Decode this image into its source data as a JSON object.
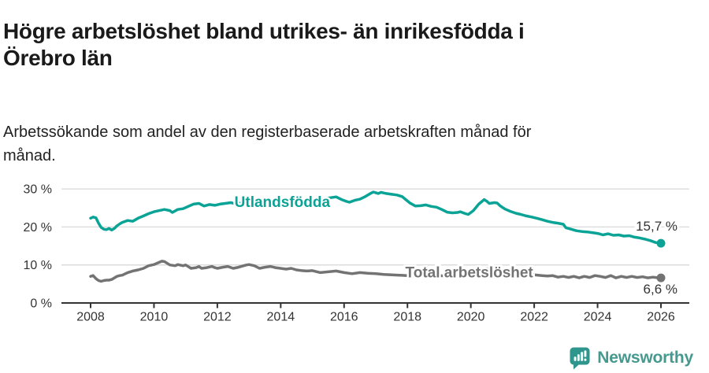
{
  "header": {
    "title_lines": [
      "Högre arbetslöshet bland utrikes- än inrikesfödda i",
      "Örebro län"
    ],
    "subtitle_lines": [
      "Arbetssökande som andel av den registerbaserade arbetskraften månad för",
      "månad."
    ]
  },
  "chart_data": {
    "type": "line",
    "title": "Högre arbetslöshet bland utrikes- än inrikesfödda i Örebro län",
    "subtitle": "Arbetssökande som andel av den registerbaserade arbetskraften månad för månad.",
    "grid": true,
    "legend_position": "inline-labels-on-lines",
    "x_axis": {
      "ticks": [
        2008,
        2010,
        2012,
        2014,
        2016,
        2018,
        2020,
        2022,
        2024,
        2026
      ],
      "range": [
        2007.1,
        2026.9
      ]
    },
    "y_axis": {
      "ticks": [
        0,
        10,
        20,
        30
      ],
      "tick_labels": [
        "0 %",
        "10 %",
        "20 %",
        "30 %"
      ],
      "range": [
        0,
        32.5
      ]
    },
    "colors": {
      "grid": "#d9d9d9",
      "axis": "#333333",
      "text": "#333333"
    },
    "series": [
      {
        "name": "Utlandsfödda",
        "color": "#0aa396",
        "end_value_label": "15,7 %",
        "end_label_side": "above",
        "inline_label_pos": {
          "x": 2014.05,
          "y": 26.6
        },
        "points": [
          [
            2008.0,
            22.3
          ],
          [
            2008.08,
            22.6
          ],
          [
            2008.17,
            22.4
          ],
          [
            2008.25,
            21.0
          ],
          [
            2008.33,
            19.9
          ],
          [
            2008.42,
            19.4
          ],
          [
            2008.5,
            19.3
          ],
          [
            2008.58,
            19.6
          ],
          [
            2008.67,
            19.2
          ],
          [
            2008.75,
            19.6
          ],
          [
            2008.83,
            20.3
          ],
          [
            2008.92,
            20.8
          ],
          [
            2009.0,
            21.2
          ],
          [
            2009.17,
            21.7
          ],
          [
            2009.33,
            21.5
          ],
          [
            2009.5,
            22.3
          ],
          [
            2009.67,
            22.9
          ],
          [
            2009.83,
            23.5
          ],
          [
            2010.0,
            24.0
          ],
          [
            2010.17,
            24.3
          ],
          [
            2010.33,
            24.6
          ],
          [
            2010.5,
            24.3
          ],
          [
            2010.58,
            23.8
          ],
          [
            2010.75,
            24.6
          ],
          [
            2010.92,
            24.8
          ],
          [
            2011.08,
            25.4
          ],
          [
            2011.25,
            26.0
          ],
          [
            2011.42,
            26.2
          ],
          [
            2011.58,
            25.5
          ],
          [
            2011.75,
            25.9
          ],
          [
            2011.92,
            25.7
          ],
          [
            2012.08,
            26.0
          ],
          [
            2012.25,
            26.2
          ],
          [
            2012.42,
            26.4
          ],
          [
            2012.58,
            26.1
          ],
          [
            2012.75,
            26.3
          ],
          [
            2012.92,
            26.2
          ],
          [
            2013.08,
            26.5
          ],
          [
            2013.25,
            26.7
          ],
          [
            2013.42,
            26.4
          ],
          [
            2013.58,
            26.6
          ],
          [
            2013.75,
            26.7
          ],
          [
            2013.92,
            26.4
          ],
          [
            2014.08,
            26.3
          ],
          [
            2014.25,
            26.5
          ],
          [
            2014.42,
            26.4
          ],
          [
            2014.58,
            26.6
          ],
          [
            2014.75,
            26.8
          ],
          [
            2014.92,
            27.0
          ],
          [
            2015.08,
            27.2
          ],
          [
            2015.25,
            27.3
          ],
          [
            2015.42,
            27.5
          ],
          [
            2015.58,
            27.7
          ],
          [
            2015.75,
            27.9
          ],
          [
            2015.92,
            27.2
          ],
          [
            2016.08,
            26.7
          ],
          [
            2016.17,
            26.5
          ],
          [
            2016.33,
            27.0
          ],
          [
            2016.5,
            27.3
          ],
          [
            2016.67,
            28.0
          ],
          [
            2016.83,
            28.8
          ],
          [
            2016.92,
            29.2
          ],
          [
            2017.0,
            29.0
          ],
          [
            2017.08,
            28.8
          ],
          [
            2017.17,
            29.1
          ],
          [
            2017.33,
            28.8
          ],
          [
            2017.5,
            28.6
          ],
          [
            2017.67,
            28.4
          ],
          [
            2017.83,
            28.0
          ],
          [
            2017.92,
            27.4
          ],
          [
            2018.08,
            26.3
          ],
          [
            2018.25,
            25.5
          ],
          [
            2018.42,
            25.6
          ],
          [
            2018.58,
            25.8
          ],
          [
            2018.75,
            25.4
          ],
          [
            2018.92,
            25.2
          ],
          [
            2019.08,
            24.6
          ],
          [
            2019.25,
            23.9
          ],
          [
            2019.42,
            23.7
          ],
          [
            2019.58,
            23.8
          ],
          [
            2019.67,
            24.0
          ],
          [
            2019.83,
            23.5
          ],
          [
            2019.92,
            23.3
          ],
          [
            2020.08,
            24.3
          ],
          [
            2020.25,
            26.0
          ],
          [
            2020.42,
            27.2
          ],
          [
            2020.5,
            26.8
          ],
          [
            2020.58,
            26.2
          ],
          [
            2020.75,
            26.4
          ],
          [
            2020.83,
            26.3
          ],
          [
            2020.92,
            25.6
          ],
          [
            2021.08,
            24.7
          ],
          [
            2021.25,
            24.1
          ],
          [
            2021.42,
            23.6
          ],
          [
            2021.58,
            23.3
          ],
          [
            2021.75,
            22.9
          ],
          [
            2021.92,
            22.6
          ],
          [
            2022.08,
            22.3
          ],
          [
            2022.25,
            21.9
          ],
          [
            2022.42,
            21.5
          ],
          [
            2022.58,
            21.2
          ],
          [
            2022.75,
            21.0
          ],
          [
            2022.92,
            20.7
          ],
          [
            2023.0,
            19.8
          ],
          [
            2023.17,
            19.4
          ],
          [
            2023.33,
            19.0
          ],
          [
            2023.5,
            18.8
          ],
          [
            2023.67,
            18.7
          ],
          [
            2023.83,
            18.5
          ],
          [
            2024.0,
            18.3
          ],
          [
            2024.17,
            17.9
          ],
          [
            2024.33,
            18.2
          ],
          [
            2024.5,
            17.8
          ],
          [
            2024.67,
            17.9
          ],
          [
            2024.83,
            17.6
          ],
          [
            2025.0,
            17.7
          ],
          [
            2025.17,
            17.3
          ],
          [
            2025.33,
            17.1
          ],
          [
            2025.5,
            16.8
          ],
          [
            2025.67,
            16.4
          ],
          [
            2025.83,
            15.9
          ],
          [
            2026.0,
            15.7
          ]
        ]
      },
      {
        "name": "Total arbetslöshet",
        "color": "#737373",
        "end_value_label": "6,6 %",
        "end_label_side": "below",
        "inline_label_pos": {
          "x": 2019.95,
          "y": 8.1
        },
        "points": [
          [
            2008.0,
            7.0
          ],
          [
            2008.08,
            7.2
          ],
          [
            2008.17,
            6.4
          ],
          [
            2008.25,
            5.9
          ],
          [
            2008.33,
            5.7
          ],
          [
            2008.42,
            5.9
          ],
          [
            2008.5,
            6.0
          ],
          [
            2008.58,
            6.0
          ],
          [
            2008.67,
            6.2
          ],
          [
            2008.75,
            6.6
          ],
          [
            2008.83,
            7.0
          ],
          [
            2008.92,
            7.2
          ],
          [
            2009.0,
            7.3
          ],
          [
            2009.17,
            8.0
          ],
          [
            2009.33,
            8.4
          ],
          [
            2009.5,
            8.7
          ],
          [
            2009.67,
            9.1
          ],
          [
            2009.83,
            9.8
          ],
          [
            2010.0,
            10.1
          ],
          [
            2010.17,
            10.7
          ],
          [
            2010.25,
            11.0
          ],
          [
            2010.33,
            10.9
          ],
          [
            2010.5,
            10.0
          ],
          [
            2010.67,
            9.8
          ],
          [
            2010.75,
            10.1
          ],
          [
            2010.92,
            9.8
          ],
          [
            2011.0,
            10.0
          ],
          [
            2011.17,
            9.1
          ],
          [
            2011.33,
            9.3
          ],
          [
            2011.42,
            9.6
          ],
          [
            2011.5,
            9.1
          ],
          [
            2011.67,
            9.3
          ],
          [
            2011.83,
            9.6
          ],
          [
            2011.92,
            9.3
          ],
          [
            2012.0,
            9.1
          ],
          [
            2012.17,
            9.4
          ],
          [
            2012.33,
            9.6
          ],
          [
            2012.5,
            9.1
          ],
          [
            2012.67,
            9.4
          ],
          [
            2012.83,
            9.8
          ],
          [
            2012.92,
            10.0
          ],
          [
            2013.0,
            10.1
          ],
          [
            2013.17,
            9.8
          ],
          [
            2013.33,
            9.1
          ],
          [
            2013.5,
            9.4
          ],
          [
            2013.67,
            9.6
          ],
          [
            2013.83,
            9.3
          ],
          [
            2014.0,
            9.1
          ],
          [
            2014.17,
            8.9
          ],
          [
            2014.33,
            9.1
          ],
          [
            2014.5,
            8.7
          ],
          [
            2014.67,
            8.5
          ],
          [
            2014.83,
            8.4
          ],
          [
            2015.0,
            8.5
          ],
          [
            2015.25,
            8.0
          ],
          [
            2015.5,
            8.2
          ],
          [
            2015.75,
            8.4
          ],
          [
            2016.0,
            8.0
          ],
          [
            2016.25,
            7.7
          ],
          [
            2016.5,
            8.0
          ],
          [
            2016.75,
            7.8
          ],
          [
            2017.0,
            7.7
          ],
          [
            2017.25,
            7.5
          ],
          [
            2017.5,
            7.4
          ],
          [
            2017.75,
            7.3
          ],
          [
            2018.0,
            7.2
          ],
          [
            2018.25,
            7.1
          ],
          [
            2018.5,
            7.2
          ],
          [
            2018.75,
            7.1
          ],
          [
            2019.0,
            7.2
          ],
          [
            2019.25,
            7.1
          ],
          [
            2019.5,
            7.2
          ],
          [
            2019.75,
            7.3
          ],
          [
            2020.0,
            7.5
          ],
          [
            2020.25,
            8.5
          ],
          [
            2020.5,
            9.0
          ],
          [
            2020.75,
            8.8
          ],
          [
            2021.0,
            8.5
          ],
          [
            2021.25,
            8.2
          ],
          [
            2021.5,
            7.9
          ],
          [
            2021.75,
            7.6
          ],
          [
            2022.0,
            7.4
          ],
          [
            2022.25,
            7.2
          ],
          [
            2022.42,
            7.1
          ],
          [
            2022.58,
            7.2
          ],
          [
            2022.75,
            6.8
          ],
          [
            2022.92,
            7.0
          ],
          [
            2023.08,
            6.7
          ],
          [
            2023.25,
            7.0
          ],
          [
            2023.42,
            6.6
          ],
          [
            2023.58,
            7.0
          ],
          [
            2023.75,
            6.7
          ],
          [
            2023.92,
            7.2
          ],
          [
            2024.08,
            7.0
          ],
          [
            2024.25,
            6.7
          ],
          [
            2024.42,
            7.2
          ],
          [
            2024.58,
            6.6
          ],
          [
            2024.75,
            7.0
          ],
          [
            2024.92,
            6.7
          ],
          [
            2025.08,
            7.0
          ],
          [
            2025.25,
            6.7
          ],
          [
            2025.42,
            6.9
          ],
          [
            2025.58,
            6.6
          ],
          [
            2025.75,
            6.8
          ],
          [
            2025.92,
            6.6
          ],
          [
            2026.0,
            6.6
          ]
        ]
      }
    ]
  },
  "footer": {
    "brand": "Newsworthy",
    "brand_color": "#45998f",
    "icon": "newsworthy-bar-chart-speech-bubble-icon",
    "icon_color": "#2f968d"
  }
}
